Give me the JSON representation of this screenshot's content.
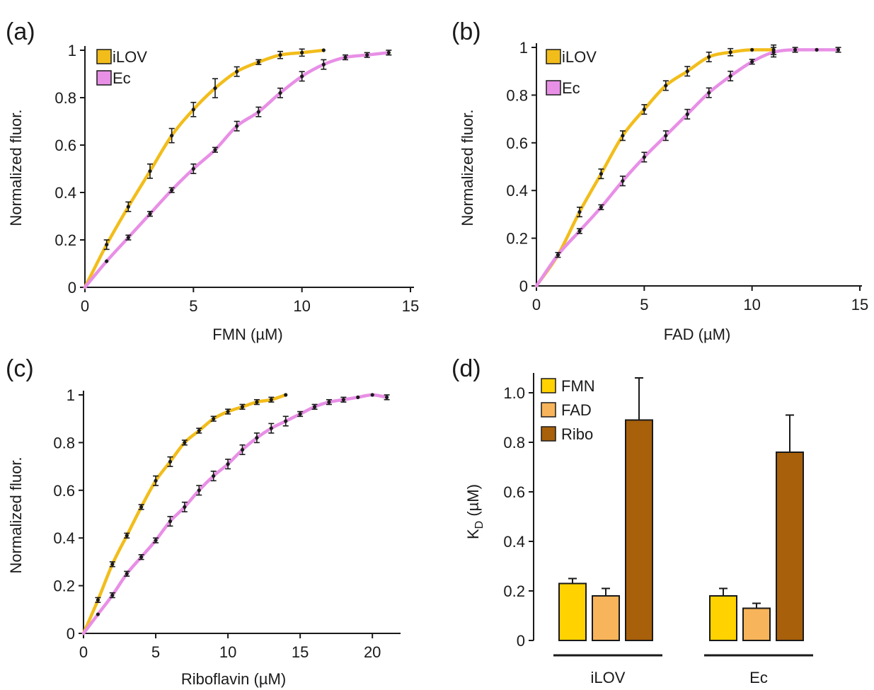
{
  "colors": {
    "iLOV": "#f2bd1b",
    "Ec": "#e88fe6",
    "FMN": "#ffd200",
    "FAD": "#f7b45a",
    "Ribo": "#a8600a"
  },
  "chart_data": [
    {
      "panel": "(a)",
      "type": "line",
      "xlabel": "FMN (µM)",
      "ylabel": "Normalized fluor.",
      "xlim": [
        0,
        15
      ],
      "ylim": [
        0,
        1
      ],
      "xticks": [
        "0",
        "5",
        "10",
        "15"
      ],
      "yticks": [
        "0",
        "0.2",
        "0.4",
        "0.6",
        "0.8",
        "1"
      ],
      "legend": [
        "iLOV",
        "Ec"
      ],
      "legend_position": "top-left",
      "series": [
        {
          "name": "iLOV",
          "color": "#f2bd1b",
          "x": [
            1,
            2,
            3,
            4,
            5,
            6,
            7,
            8,
            9,
            10,
            11
          ],
          "y": [
            0.18,
            0.34,
            0.49,
            0.64,
            0.75,
            0.84,
            0.91,
            0.95,
            0.98,
            0.99,
            1.0
          ],
          "err": [
            0.02,
            0.02,
            0.03,
            0.03,
            0.03,
            0.04,
            0.02,
            0.01,
            0.015,
            0.015,
            0.0
          ]
        },
        {
          "name": "Ec",
          "color": "#e88fe6",
          "x": [
            1,
            2,
            3,
            4,
            5,
            6,
            7,
            8,
            9,
            10,
            11,
            12,
            13,
            14
          ],
          "y": [
            0.11,
            0.21,
            0.31,
            0.41,
            0.5,
            0.58,
            0.68,
            0.74,
            0.82,
            0.89,
            0.94,
            0.97,
            0.98,
            0.99
          ],
          "err": [
            0.0,
            0.01,
            0.01,
            0.01,
            0.02,
            0.01,
            0.02,
            0.02,
            0.02,
            0.02,
            0.02,
            0.01,
            0.01,
            0.01
          ]
        }
      ]
    },
    {
      "panel": "(b)",
      "type": "line",
      "xlabel": "FAD (µM)",
      "ylabel": "Normalized fluor.",
      "xlim": [
        0,
        15
      ],
      "ylim": [
        0,
        1
      ],
      "xticks": [
        "0",
        "5",
        "10",
        "15"
      ],
      "yticks": [
        "0",
        "0.2",
        "0.4",
        "0.6",
        "0.8",
        "1"
      ],
      "legend": [
        "iLOV",
        "Ec"
      ],
      "legend_position": "top-left",
      "series": [
        {
          "name": "iLOV",
          "color": "#f2bd1b",
          "x": [
            1,
            2,
            3,
            4,
            5,
            6,
            7,
            8,
            9,
            10,
            11
          ],
          "y": [
            0.13,
            0.31,
            0.47,
            0.63,
            0.74,
            0.84,
            0.9,
            0.96,
            0.98,
            0.99,
            0.99
          ],
          "err": [
            0.01,
            0.02,
            0.02,
            0.02,
            0.02,
            0.02,
            0.02,
            0.02,
            0.015,
            0.0,
            0.02
          ]
        },
        {
          "name": "Ec",
          "color": "#e88fe6",
          "x": [
            1,
            2,
            3,
            4,
            5,
            6,
            7,
            8,
            9,
            10,
            11,
            12,
            13,
            14
          ],
          "y": [
            0.13,
            0.23,
            0.33,
            0.44,
            0.54,
            0.63,
            0.72,
            0.81,
            0.88,
            0.94,
            0.98,
            0.99,
            0.99,
            0.99
          ],
          "err": [
            0.0,
            0.01,
            0.01,
            0.02,
            0.02,
            0.02,
            0.02,
            0.02,
            0.02,
            0.01,
            0.02,
            0.01,
            0.0,
            0.01
          ]
        }
      ]
    },
    {
      "panel": "(c)",
      "type": "line",
      "xlabel": "Riboflavin (µM)",
      "ylabel": "Normalized fluor.",
      "xlim": [
        0,
        22
      ],
      "ylim": [
        0,
        1
      ],
      "xticks": [
        "0",
        "5",
        "10",
        "15",
        "20"
      ],
      "yticks": [
        "0",
        "0.2",
        "0.4",
        "0.6",
        "0.8",
        "1"
      ],
      "series": [
        {
          "name": "iLOV",
          "color": "#f2bd1b",
          "x": [
            1,
            2,
            3,
            4,
            5,
            6,
            7,
            8,
            9,
            10,
            11,
            12,
            13,
            14
          ],
          "y": [
            0.14,
            0.29,
            0.41,
            0.53,
            0.64,
            0.72,
            0.8,
            0.85,
            0.9,
            0.93,
            0.95,
            0.97,
            0.98,
            1.0
          ],
          "err": [
            0.01,
            0.01,
            0.01,
            0.01,
            0.02,
            0.02,
            0.01,
            0.01,
            0.01,
            0.01,
            0.01,
            0.01,
            0.01,
            0.0
          ]
        },
        {
          "name": "Ec",
          "color": "#e88fe6",
          "x": [
            1,
            2,
            3,
            4,
            5,
            6,
            7,
            8,
            9,
            10,
            11,
            12,
            13,
            14,
            15,
            16,
            17,
            18,
            19,
            20,
            21
          ],
          "y": [
            0.08,
            0.16,
            0.25,
            0.32,
            0.39,
            0.47,
            0.53,
            0.6,
            0.66,
            0.71,
            0.77,
            0.82,
            0.86,
            0.89,
            0.92,
            0.95,
            0.97,
            0.98,
            0.99,
            1.0,
            0.99
          ],
          "err": [
            0.0,
            0.01,
            0.01,
            0.01,
            0.01,
            0.02,
            0.02,
            0.02,
            0.02,
            0.02,
            0.02,
            0.02,
            0.02,
            0.02,
            0.01,
            0.01,
            0.01,
            0.01,
            0.0,
            0.0,
            0.01
          ]
        }
      ]
    },
    {
      "panel": "(d)",
      "type": "bar",
      "ylabel": "K",
      "ylabel_sub": "D",
      "ylabel_unit": " (µM)",
      "ylim": [
        0,
        1.08
      ],
      "yticks": [
        "0",
        "0.2",
        "0.4",
        "0.6",
        "0.8",
        "1.0"
      ],
      "categories": [
        "iLOV",
        "Ec"
      ],
      "legend": [
        "FMN",
        "FAD",
        "Ribo"
      ],
      "legend_position": "top-left",
      "series": [
        {
          "name": "FMN",
          "color": "#ffd200",
          "values": [
            0.23,
            0.18
          ],
          "err": [
            0.02,
            0.03
          ]
        },
        {
          "name": "FAD",
          "color": "#f7b45a",
          "values": [
            0.18,
            0.13
          ],
          "err": [
            0.03,
            0.02
          ]
        },
        {
          "name": "Ribo",
          "color": "#a8600a",
          "values": [
            0.89,
            0.76
          ],
          "err": [
            0.17,
            0.15
          ]
        }
      ]
    }
  ]
}
